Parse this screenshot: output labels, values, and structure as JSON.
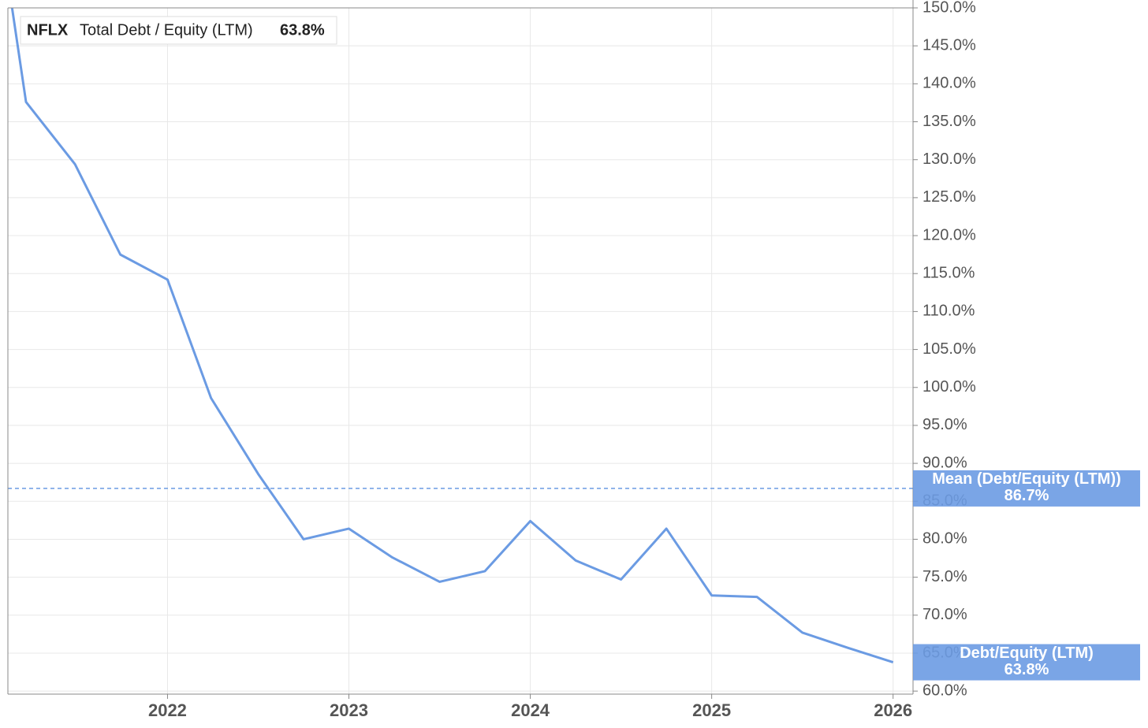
{
  "chart_data": {
    "type": "line",
    "ticker": "NFLX",
    "legend_label": "Total Debt / Equity (LTM)",
    "legend_value": "63.8%",
    "x": [
      2021.14,
      2021.22,
      2021.49,
      2021.74,
      2022.0,
      2022.24,
      2022.5,
      2022.75,
      2023.0,
      2023.24,
      2023.5,
      2023.75,
      2024.0,
      2024.25,
      2024.5,
      2024.75,
      2025.0,
      2025.25,
      2025.5,
      2025.75,
      2026.0
    ],
    "series": [
      {
        "name": "Debt/Equity (LTM)",
        "color": "#6b9be3",
        "values": [
          150.5,
          137.6,
          129.4,
          117.5,
          114.2,
          98.6,
          88.6,
          80.0,
          81.4,
          77.6,
          74.4,
          75.8,
          82.4,
          77.2,
          74.7,
          81.4,
          72.6,
          72.4,
          67.7,
          65.7,
          63.8
        ],
        "last_label": "63.8%"
      }
    ],
    "mean": {
      "name": "Mean (Debt/Equity (LTM))",
      "value": 86.7,
      "label": "86.7%",
      "color": "#6b9be3"
    },
    "xlim": [
      2021.12,
      2026.11
    ],
    "xticks": [
      2022,
      2023,
      2024,
      2025,
      2026
    ],
    "ylim": [
      59.6,
      150
    ],
    "yticks": [
      {
        "value": 60,
        "label": "60.0%"
      },
      {
        "value": 65,
        "label": "65.0%"
      },
      {
        "value": 70,
        "label": "70.0%"
      },
      {
        "value": 75,
        "label": "75.0%"
      },
      {
        "value": 80,
        "label": "80.0%"
      },
      {
        "value": 85,
        "label": "85.0%"
      },
      {
        "value": 90,
        "label": "90.0%"
      },
      {
        "value": 95,
        "label": "95.0%"
      },
      {
        "value": 100,
        "label": "100.0%"
      },
      {
        "value": 105,
        "label": "105.0%"
      },
      {
        "value": 110,
        "label": "110.0%"
      },
      {
        "value": 115,
        "label": "115.0%"
      },
      {
        "value": 120,
        "label": "120.0%"
      },
      {
        "value": 125,
        "label": "125.0%"
      },
      {
        "value": 130,
        "label": "130.0%"
      },
      {
        "value": 135,
        "label": "135.0%"
      },
      {
        "value": 140,
        "label": "140.0%"
      },
      {
        "value": 145,
        "label": "145.0%"
      },
      {
        "value": 150,
        "label": "150.0%"
      }
    ],
    "grid": true
  }
}
